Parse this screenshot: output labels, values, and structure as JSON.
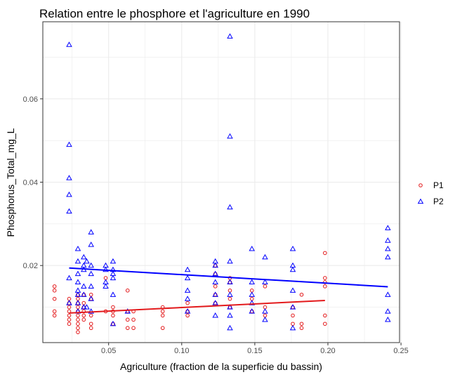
{
  "chart_data": {
    "type": "scatter",
    "title": "Relation entre le phosphore et l'agriculture en 1990",
    "xlabel": "Agriculture (fraction de la superficie du bassin)",
    "ylabel": "Phosphorus_Total_mg_L",
    "xlim": [
      0.005,
      0.249
    ],
    "ylim": [
      0.0015,
      0.0785
    ],
    "x_ticks": [
      0.05,
      0.1,
      0.15,
      0.2,
      0.25
    ],
    "x_tick_labels": [
      "0.05",
      "0.10",
      "0.15",
      "0.20",
      "0.25"
    ],
    "y_ticks": [
      0.02,
      0.04,
      0.06
    ],
    "y_tick_labels": [
      "0.02",
      "0.04",
      "0.06"
    ],
    "grid": true,
    "legend_position": "right",
    "colors": {
      "P1": "#e31a1c",
      "P2": "#0000ff",
      "panel_border": "#333333",
      "grid": "#ebebeb"
    },
    "series": [
      {
        "name": "P1",
        "marker": "circle",
        "x": [
          0.013,
          0.013,
          0.013,
          0.013,
          0.013,
          0.023,
          0.023,
          0.023,
          0.023,
          0.023,
          0.023,
          0.023,
          0.029,
          0.029,
          0.029,
          0.029,
          0.029,
          0.029,
          0.029,
          0.029,
          0.029,
          0.029,
          0.033,
          0.033,
          0.033,
          0.033,
          0.033,
          0.033,
          0.038,
          0.038,
          0.038,
          0.038,
          0.038,
          0.048,
          0.048,
          0.053,
          0.053,
          0.053,
          0.053,
          0.063,
          0.063,
          0.063,
          0.063,
          0.067,
          0.067,
          0.067,
          0.087,
          0.087,
          0.087,
          0.087,
          0.104,
          0.104,
          0.104,
          0.123,
          0.123,
          0.123,
          0.123,
          0.123,
          0.133,
          0.133,
          0.133,
          0.133,
          0.133,
          0.148,
          0.148,
          0.148,
          0.157,
          0.157,
          0.157,
          0.176,
          0.176,
          0.176,
          0.182,
          0.182,
          0.182,
          0.198,
          0.198,
          0.198,
          0.198,
          0.198,
          0.198
        ],
        "y": [
          0.015,
          0.014,
          0.012,
          0.009,
          0.008,
          0.012,
          0.011,
          0.01,
          0.009,
          0.008,
          0.007,
          0.006,
          0.013,
          0.012,
          0.011,
          0.01,
          0.009,
          0.008,
          0.007,
          0.006,
          0.005,
          0.004,
          0.013,
          0.011,
          0.01,
          0.009,
          0.008,
          0.007,
          0.013,
          0.012,
          0.008,
          0.006,
          0.005,
          0.017,
          0.009,
          0.01,
          0.009,
          0.008,
          0.006,
          0.014,
          0.009,
          0.007,
          0.005,
          0.009,
          0.007,
          0.005,
          0.01,
          0.009,
          0.008,
          0.005,
          0.011,
          0.009,
          0.008,
          0.02,
          0.018,
          0.015,
          0.013,
          0.011,
          0.017,
          0.016,
          0.014,
          0.012,
          0.01,
          0.014,
          0.012,
          0.009,
          0.015,
          0.01,
          0.008,
          0.01,
          0.008,
          0.006,
          0.013,
          0.006,
          0.005,
          0.023,
          0.017,
          0.016,
          0.015,
          0.008,
          0.006
        ],
        "fit": {
          "x": [
            0.023,
            0.198
          ],
          "y": [
            0.0086,
            0.0116
          ]
        }
      },
      {
        "name": "P2",
        "marker": "triangle",
        "x": [
          0.023,
          0.023,
          0.023,
          0.023,
          0.023,
          0.023,
          0.023,
          0.029,
          0.029,
          0.029,
          0.029,
          0.029,
          0.029,
          0.029,
          0.029,
          0.033,
          0.033,
          0.033,
          0.033,
          0.033,
          0.033,
          0.035,
          0.035,
          0.038,
          0.038,
          0.038,
          0.038,
          0.038,
          0.038,
          0.038,
          0.048,
          0.048,
          0.048,
          0.048,
          0.053,
          0.053,
          0.053,
          0.053,
          0.053,
          0.053,
          0.063,
          0.104,
          0.104,
          0.104,
          0.104,
          0.104,
          0.123,
          0.123,
          0.123,
          0.123,
          0.123,
          0.123,
          0.123,
          0.133,
          0.133,
          0.133,
          0.133,
          0.133,
          0.133,
          0.133,
          0.133,
          0.133,
          0.148,
          0.148,
          0.148,
          0.148,
          0.148,
          0.157,
          0.157,
          0.157,
          0.157,
          0.176,
          0.176,
          0.176,
          0.176,
          0.176,
          0.176,
          0.241,
          0.241,
          0.241,
          0.241,
          0.241,
          0.241,
          0.241
        ],
        "y": [
          0.073,
          0.049,
          0.041,
          0.037,
          0.033,
          0.017,
          0.011,
          0.024,
          0.021,
          0.018,
          0.016,
          0.014,
          0.013,
          0.011,
          0.009,
          0.022,
          0.02,
          0.019,
          0.015,
          0.013,
          0.01,
          0.021,
          0.01,
          0.028,
          0.025,
          0.02,
          0.018,
          0.015,
          0.012,
          0.009,
          0.02,
          0.019,
          0.016,
          0.015,
          0.021,
          0.019,
          0.018,
          0.017,
          0.013,
          0.006,
          0.009,
          0.019,
          0.017,
          0.014,
          0.012,
          0.009,
          0.021,
          0.02,
          0.018,
          0.016,
          0.013,
          0.011,
          0.008,
          0.075,
          0.051,
          0.034,
          0.021,
          0.016,
          0.013,
          0.01,
          0.008,
          0.005,
          0.024,
          0.016,
          0.013,
          0.011,
          0.009,
          0.022,
          0.016,
          0.009,
          0.007,
          0.024,
          0.02,
          0.019,
          0.014,
          0.01,
          0.005,
          0.029,
          0.026,
          0.024,
          0.022,
          0.013,
          0.009,
          0.007
        ],
        "fit": {
          "x": [
            0.023,
            0.241
          ],
          "y": [
            0.0194,
            0.0149
          ]
        }
      }
    ]
  }
}
